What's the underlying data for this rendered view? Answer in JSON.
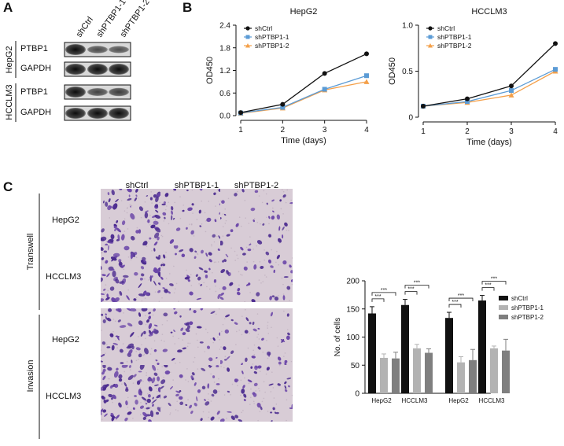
{
  "panels": {
    "a": "A",
    "b": "B",
    "c": "C"
  },
  "western_blot": {
    "lanes": [
      "shCtrl",
      "shPTBP1-1",
      "shPTBP1-2"
    ],
    "groups": [
      {
        "cell_line": "HepG2",
        "rows": [
          "PTBP1",
          "GAPDH"
        ]
      },
      {
        "cell_line": "HCCLM3",
        "rows": [
          "PTBP1",
          "GAPDH"
        ]
      }
    ],
    "band_intensity": {
      "HepG2_PTBP1": [
        1.0,
        0.55,
        0.5
      ],
      "HepG2_GAPDH": [
        1.0,
        1.0,
        1.0
      ],
      "HCCLM3_PTBP1": [
        1.0,
        0.6,
        0.65
      ],
      "HCCLM3_GAPDH": [
        1.0,
        1.0,
        1.0
      ]
    }
  },
  "micrographs": {
    "columns": [
      "shCtrl",
      "shPTBP1-1",
      "shPTBP1-2"
    ],
    "assays": [
      {
        "name": "Transwell",
        "rows": [
          "HepG2",
          "HCCLM3"
        ]
      },
      {
        "name": "Invasion",
        "rows": [
          "HepG2",
          "HCCLM3"
        ]
      }
    ]
  },
  "chart_data": [
    {
      "type": "line",
      "title": "HepG2",
      "xlabel": "Time (days)",
      "ylabel": "OD450",
      "x": [
        1,
        2,
        3,
        4
      ],
      "xticks": [
        "1",
        "2",
        "3",
        "4"
      ],
      "yticks": [
        "0.0",
        "0.6",
        "1.2",
        "1.8",
        "2.4"
      ],
      "ylim": [
        0,
        2.4
      ],
      "legend": "top-left",
      "series": [
        {
          "name": "shCtrl",
          "color": "#111111",
          "marker": "circle",
          "values": [
            0.08,
            0.3,
            1.12,
            1.64
          ]
        },
        {
          "name": "shPTBP1-1",
          "color": "#5b9bd5",
          "marker": "square",
          "values": [
            0.07,
            0.22,
            0.7,
            1.06
          ]
        },
        {
          "name": "shPTBP1-2",
          "color": "#f4a04a",
          "marker": "triangle",
          "values": [
            0.06,
            0.2,
            0.68,
            0.9
          ]
        }
      ]
    },
    {
      "type": "line",
      "title": "HCCLM3",
      "xlabel": "Time (days)",
      "ylabel": "OD450",
      "x": [
        1,
        2,
        3,
        4
      ],
      "xticks": [
        "1",
        "2",
        "3",
        "4"
      ],
      "yticks": [
        "0",
        "0.5",
        "1.0"
      ],
      "ylim": [
        0,
        1.0
      ],
      "legend": "top-left",
      "series": [
        {
          "name": "shCtrl",
          "color": "#111111",
          "marker": "circle",
          "values": [
            0.12,
            0.2,
            0.34,
            0.8
          ]
        },
        {
          "name": "shPTBP1-1",
          "color": "#5b9bd5",
          "marker": "square",
          "values": [
            0.12,
            0.17,
            0.29,
            0.52
          ]
        },
        {
          "name": "shPTBP1-2",
          "color": "#f4a04a",
          "marker": "triangle",
          "values": [
            0.12,
            0.16,
            0.24,
            0.5
          ]
        }
      ]
    },
    {
      "type": "bar",
      "ylabel": "No. of cells",
      "yticks": [
        "0",
        "50",
        "100",
        "150",
        "200"
      ],
      "ylim": [
        0,
        200
      ],
      "legend": "right",
      "categories": [
        "HepG2",
        "HCCLM3",
        "HepG2",
        "HCCLM3"
      ],
      "series": [
        {
          "name": "shCtrl",
          "color": "#111111",
          "values": [
            142,
            157,
            134,
            165
          ],
          "errors": [
            12,
            10,
            10,
            9
          ]
        },
        {
          "name": "shPTBP1-1",
          "color": "#b3b3b3",
          "values": [
            63,
            80,
            55,
            80
          ],
          "errors": [
            7,
            7,
            10,
            4
          ]
        },
        {
          "name": "shPTBP1-2",
          "color": "#7f7f7f",
          "values": [
            62,
            72,
            59,
            76
          ],
          "errors": [
            11,
            7,
            19,
            20
          ]
        }
      ],
      "significance": "***"
    }
  ]
}
